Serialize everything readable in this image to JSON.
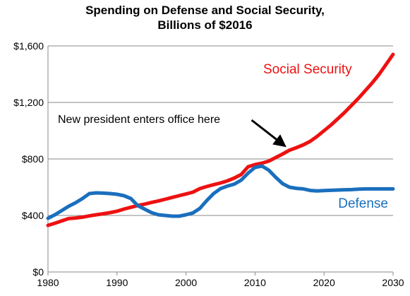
{
  "chart_data": {
    "type": "line",
    "title_line1": "Spending on Defense and Social Security,",
    "title_line2": "Billions of $2016",
    "xlim": [
      1980,
      2030
    ],
    "ylim": [
      0,
      1600
    ],
    "x_ticks": [
      "1980",
      "1990",
      "2000",
      "2010",
      "2020",
      "2030"
    ],
    "y_ticks": [
      "$0",
      "$400",
      "$800",
      "$1,200",
      "$1,600"
    ],
    "grid": true,
    "series": [
      {
        "name": "Social Security",
        "color": "#ee1111",
        "points": [
          [
            1980,
            330
          ],
          [
            1981,
            345
          ],
          [
            1982,
            362
          ],
          [
            1983,
            378
          ],
          [
            1984,
            382
          ],
          [
            1985,
            388
          ],
          [
            1986,
            397
          ],
          [
            1987,
            405
          ],
          [
            1988,
            412
          ],
          [
            1989,
            420
          ],
          [
            1990,
            430
          ],
          [
            1991,
            445
          ],
          [
            1992,
            458
          ],
          [
            1993,
            470
          ],
          [
            1994,
            480
          ],
          [
            1995,
            492
          ],
          [
            1996,
            503
          ],
          [
            1997,
            515
          ],
          [
            1998,
            528
          ],
          [
            1999,
            540
          ],
          [
            2000,
            552
          ],
          [
            2001,
            565
          ],
          [
            2002,
            590
          ],
          [
            2003,
            605
          ],
          [
            2004,
            618
          ],
          [
            2005,
            630
          ],
          [
            2006,
            645
          ],
          [
            2007,
            665
          ],
          [
            2008,
            690
          ],
          [
            2009,
            745
          ],
          [
            2010,
            760
          ],
          [
            2011,
            770
          ],
          [
            2012,
            785
          ],
          [
            2013,
            810
          ],
          [
            2014,
            835
          ],
          [
            2015,
            862
          ],
          [
            2016,
            880
          ],
          [
            2017,
            900
          ],
          [
            2018,
            925
          ],
          [
            2019,
            960
          ],
          [
            2020,
            1000
          ],
          [
            2021,
            1040
          ],
          [
            2022,
            1085
          ],
          [
            2023,
            1130
          ],
          [
            2024,
            1180
          ],
          [
            2025,
            1230
          ],
          [
            2026,
            1285
          ],
          [
            2027,
            1340
          ],
          [
            2028,
            1400
          ],
          [
            2029,
            1470
          ],
          [
            2030,
            1540
          ]
        ]
      },
      {
        "name": "Defense",
        "color": "#1a6fbd",
        "points": [
          [
            1980,
            380
          ],
          [
            1981,
            405
          ],
          [
            1982,
            435
          ],
          [
            1983,
            465
          ],
          [
            1984,
            490
          ],
          [
            1985,
            520
          ],
          [
            1986,
            555
          ],
          [
            1987,
            560
          ],
          [
            1988,
            558
          ],
          [
            1989,
            555
          ],
          [
            1990,
            550
          ],
          [
            1991,
            540
          ],
          [
            1992,
            520
          ],
          [
            1993,
            470
          ],
          [
            1994,
            445
          ],
          [
            1995,
            420
          ],
          [
            1996,
            405
          ],
          [
            1997,
            400
          ],
          [
            1998,
            395
          ],
          [
            1999,
            395
          ],
          [
            2000,
            405
          ],
          [
            2001,
            418
          ],
          [
            2002,
            450
          ],
          [
            2003,
            505
          ],
          [
            2004,
            555
          ],
          [
            2005,
            590
          ],
          [
            2006,
            608
          ],
          [
            2007,
            622
          ],
          [
            2008,
            650
          ],
          [
            2009,
            700
          ],
          [
            2010,
            740
          ],
          [
            2011,
            750
          ],
          [
            2012,
            720
          ],
          [
            2013,
            670
          ],
          [
            2014,
            625
          ],
          [
            2015,
            600
          ],
          [
            2016,
            592
          ],
          [
            2017,
            588
          ],
          [
            2018,
            577
          ],
          [
            2019,
            574
          ],
          [
            2020,
            576
          ],
          [
            2021,
            578
          ],
          [
            2022,
            580
          ],
          [
            2023,
            582
          ],
          [
            2024,
            583
          ],
          [
            2025,
            586
          ],
          [
            2026,
            588
          ],
          [
            2027,
            588
          ],
          [
            2028,
            588
          ],
          [
            2029,
            588
          ],
          [
            2030,
            588
          ]
        ]
      }
    ],
    "annotation": {
      "text": "New president enters office here",
      "arrow_from": [
        2009.5,
        1075
      ],
      "arrow_to": [
        2014.3,
        893
      ]
    }
  }
}
